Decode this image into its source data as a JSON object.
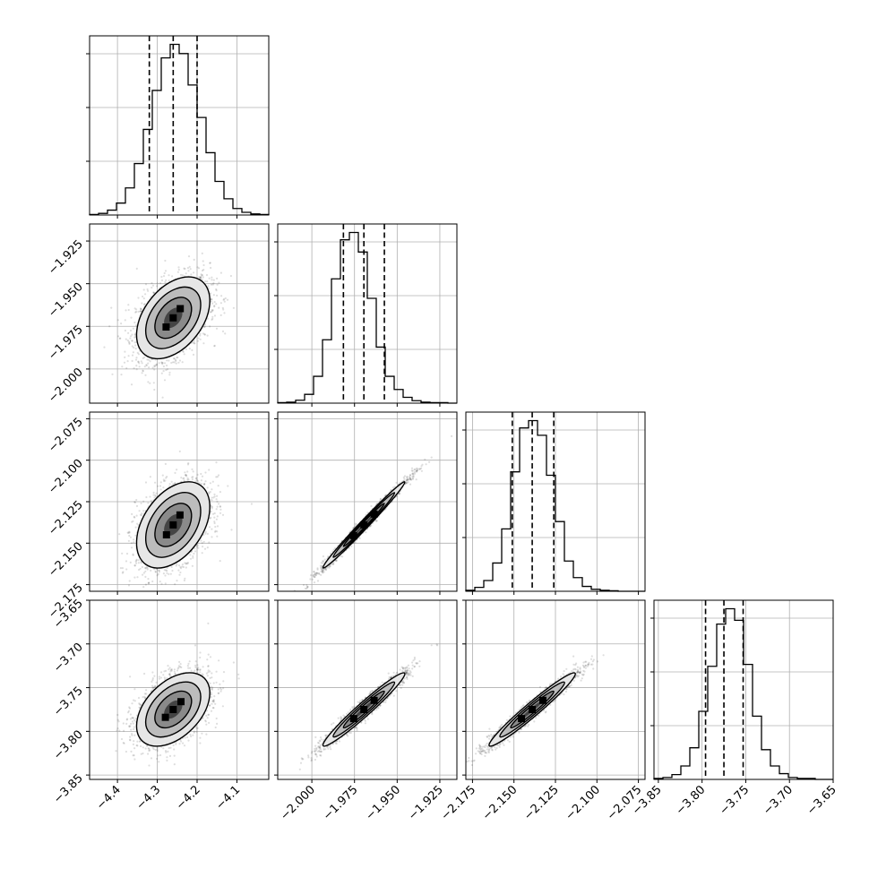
{
  "chart_data": {
    "type": "corner",
    "grid": true,
    "n_params": 4,
    "params": [
      {
        "range": [
          -4.47,
          -4.02
        ],
        "ticks": [
          -4.4,
          -4.3,
          -4.2,
          -4.1
        ],
        "tick_labels": [
          "−4.4",
          "−4.3",
          "−4.2",
          "−4.1"
        ],
        "quantiles": [
          -4.32,
          -4.26,
          -4.2
        ]
      },
      {
        "range": [
          -2.02,
          -1.915
        ],
        "ticks": [
          -2.0,
          -1.975,
          -1.95,
          -1.925
        ],
        "tick_labels": [
          "−2.000",
          "−1.975",
          "−1.950",
          "−1.925"
        ],
        "quantiles": [
          -1.9815,
          -1.9695,
          -1.9575
        ]
      },
      {
        "range": [
          -2.179,
          -2.071
        ],
        "ticks": [
          -2.175,
          -2.15,
          -2.125,
          -2.1,
          -2.075
        ],
        "tick_labels": [
          "−2.175",
          "−2.150",
          "−2.125",
          "−2.100",
          "−2.075"
        ],
        "quantiles": [
          -2.151,
          -2.139,
          -2.126
        ]
      },
      {
        "range": [
          -3.855,
          -3.65
        ],
        "ticks": [
          -3.85,
          -3.8,
          -3.75,
          -3.7,
          -3.65
        ],
        "tick_labels": [
          "−3.85",
          "−3.80",
          "−3.75",
          "−3.70",
          "−3.65"
        ],
        "quantiles": [
          -3.796,
          -3.775,
          -3.753
        ]
      }
    ],
    "histograms": [
      {
        "values": [
          1,
          3,
          9,
          22,
          50,
          95,
          158,
          230,
          290,
          315,
          298,
          240,
          180,
          115,
          62,
          30,
          12,
          5,
          2,
          1
        ]
      },
      {
        "values": [
          1,
          2,
          6,
          18,
          55,
          130,
          255,
          335,
          350,
          310,
          215,
          115,
          55,
          28,
          12,
          5,
          2,
          1,
          1,
          0
        ]
      },
      {
        "values": [
          2,
          8,
          22,
          58,
          128,
          245,
          335,
          350,
          320,
          238,
          143,
          62,
          28,
          10,
          4,
          2,
          1,
          0,
          0,
          0
        ]
      },
      {
        "values": [
          1,
          2,
          5,
          14,
          33,
          71,
          118,
          162,
          178,
          166,
          120,
          66,
          31,
          14,
          6,
          2,
          1,
          1,
          0,
          0
        ]
      }
    ],
    "pairs": [
      {
        "row": 1,
        "col": 0,
        "mean": [
          -4.26,
          -1.97
        ],
        "sd": [
          0.046,
          0.012
        ],
        "corr": 0.42
      },
      {
        "row": 2,
        "col": 0,
        "mean": [
          -4.26,
          -2.139
        ],
        "sd": [
          0.046,
          0.013
        ],
        "corr": 0.42
      },
      {
        "row": 3,
        "col": 0,
        "mean": [
          -4.26,
          -3.775
        ],
        "sd": [
          0.046,
          0.021
        ],
        "corr": 0.45
      },
      {
        "row": 2,
        "col": 1,
        "mean": [
          -1.9695,
          -2.139
        ],
        "sd": [
          0.012,
          0.013
        ],
        "corr": 0.99
      },
      {
        "row": 3,
        "col": 1,
        "mean": [
          -1.9695,
          -3.775
        ],
        "sd": [
          0.012,
          0.021
        ],
        "corr": 0.97
      },
      {
        "row": 3,
        "col": 2,
        "mean": [
          -2.139,
          -3.775
        ],
        "sd": [
          0.013,
          0.021
        ],
        "corr": 0.97
      }
    ]
  }
}
